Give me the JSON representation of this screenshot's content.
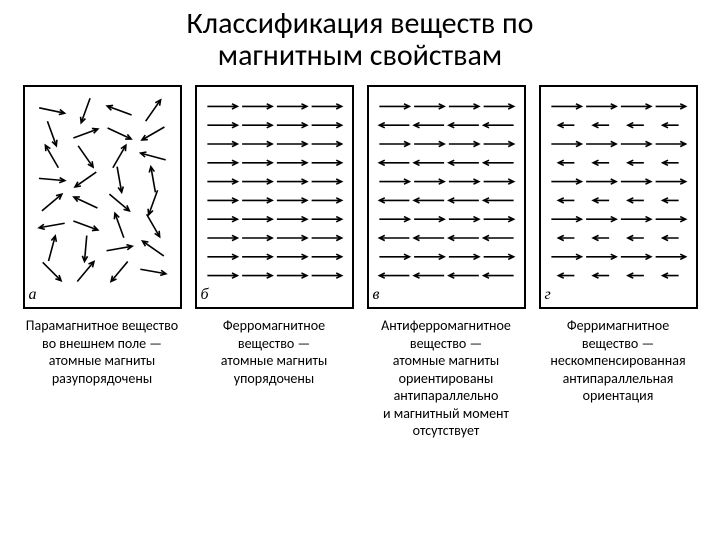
{
  "title_line1": "Классификация веществ по",
  "title_line2": "магнитным свойствам",
  "title_fontsize": 30,
  "title_color": "#000000",
  "background_color": "#ffffff",
  "panel_border_color": "#000000",
  "arrow_color": "#000000",
  "panel_label_fontsize": 16,
  "caption_fontsize": 14,
  "caption_color": "#000000",
  "panels": [
    {
      "id": "a",
      "label": "а",
      "caption_lines": [
        "Парамагнитное вещество",
        "во внешнем поле —",
        "атомные магниты",
        "разупорядочены"
      ],
      "type": "random",
      "rows": 8,
      "cols": 4,
      "arrow_len": 26,
      "stroke_width": 1.6
    },
    {
      "id": "b",
      "label": "б",
      "caption_lines": [
        "Ферромагнитное",
        "вещество —",
        "атомные магниты",
        "упорядочены"
      ],
      "type": "ferro",
      "rows": 10,
      "cols": 4,
      "arrow_len": 30,
      "stroke_width": 1.6
    },
    {
      "id": "v",
      "label": "в",
      "caption_lines": [
        "Антиферромагнитное",
        "вещество —",
        "атомные магниты",
        "ориентированы",
        "антипараллельно",
        "и магнитный момент",
        "отсутствует"
      ],
      "type": "antiferro",
      "rows": 10,
      "cols": 4,
      "arrow_len": 30,
      "stroke_width": 1.6
    },
    {
      "id": "g",
      "label": "г",
      "caption_lines": [
        "Ферримагнитное",
        "вещество —",
        "нескомпенсированная",
        "антипараллельная",
        "ориентация"
      ],
      "type": "ferri",
      "rows": 10,
      "cols": 4,
      "long_len": 30,
      "short_len": 16,
      "stroke_width": 1.6
    }
  ],
  "random_angles": [
    [
      12,
      110,
      200,
      305
    ],
    [
      70,
      340,
      25,
      150
    ],
    [
      240,
      55,
      300,
      195
    ],
    [
      5,
      145,
      80,
      260
    ],
    [
      320,
      205,
      40,
      110
    ],
    [
      170,
      20,
      250,
      60
    ],
    [
      285,
      95,
      350,
      215
    ],
    [
      45,
      310,
      130,
      10
    ]
  ]
}
